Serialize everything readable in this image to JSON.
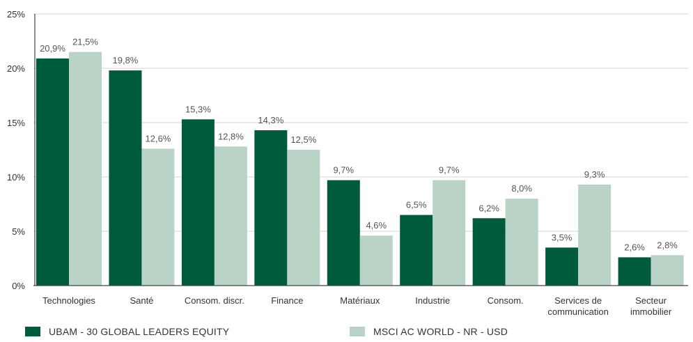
{
  "chart_data": {
    "type": "bar",
    "categories": [
      [
        "Technologies"
      ],
      [
        "Santé"
      ],
      [
        "Consom. discr."
      ],
      [
        "Finance"
      ],
      [
        "Matériaux"
      ],
      [
        "Industrie"
      ],
      [
        "Consom."
      ],
      [
        "Services de",
        "communication"
      ],
      [
        "Secteur",
        "immobilier"
      ]
    ],
    "series": [
      {
        "name": "UBAM - 30 GLOBAL LEADERS EQUITY",
        "color": "#005A3C",
        "values": [
          20.9,
          19.8,
          15.3,
          14.3,
          9.7,
          6.5,
          6.2,
          3.5,
          2.6
        ],
        "labels": [
          "20,9%",
          "19,8%",
          "15,3%",
          "14,3%",
          "9,7%",
          "6,5%",
          "6,2%",
          "3,5%",
          "2,6%"
        ]
      },
      {
        "name": "MSCI AC WORLD - NR - USD",
        "color": "#B9D3C7",
        "values": [
          21.5,
          12.6,
          12.8,
          12.5,
          4.6,
          9.7,
          8.0,
          9.3,
          2.8
        ],
        "labels": [
          "21,5%",
          "12,6%",
          "12,8%",
          "12,5%",
          "4,6%",
          "9,7%",
          "8,0%",
          "9,3%",
          "2,8%"
        ]
      }
    ],
    "yticks": [
      {
        "value": 0,
        "label": "0%"
      },
      {
        "value": 5,
        "label": "5%"
      },
      {
        "value": 10,
        "label": "10%"
      },
      {
        "value": 15,
        "label": "15%"
      },
      {
        "value": 20,
        "label": "20%"
      },
      {
        "value": 25,
        "label": "25%"
      }
    ],
    "ylim": [
      0,
      25
    ],
    "grid": true,
    "legend_position": "bottom",
    "title": "",
    "xlabel": "",
    "ylabel": ""
  }
}
